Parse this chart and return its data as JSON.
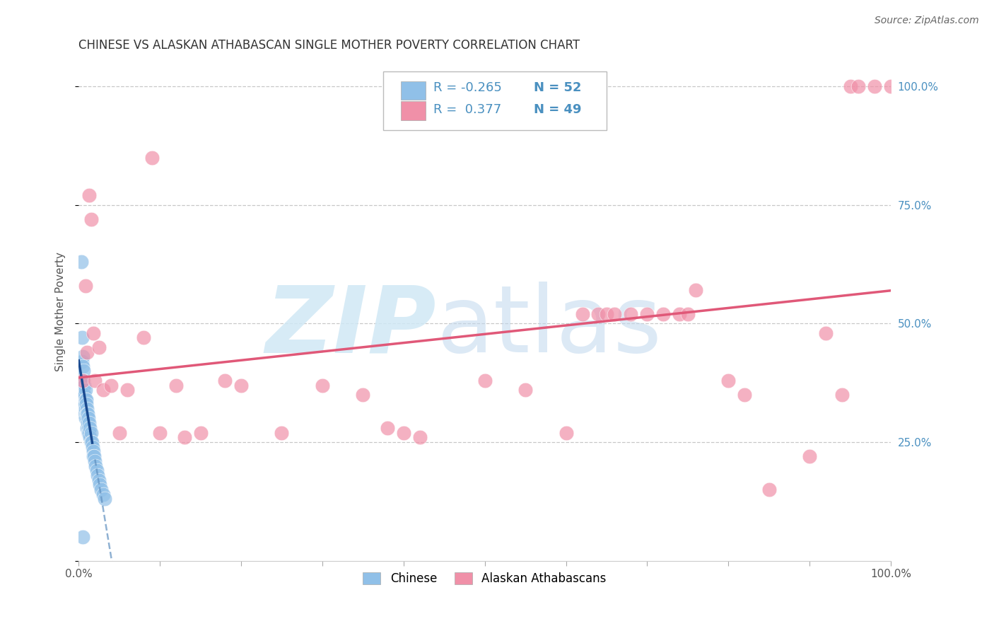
{
  "title": "CHINESE VS ALASKAN ATHABASCAN SINGLE MOTHER POVERTY CORRELATION CHART",
  "source": "Source: ZipAtlas.com",
  "ylabel": "Single Mother Poverty",
  "xlim": [
    0.0,
    1.0
  ],
  "ylim": [
    0.0,
    1.05
  ],
  "color_chinese": "#90C0E8",
  "color_athabascan": "#F090A8",
  "color_trend_chinese_solid": "#1A4A90",
  "color_trend_chinese_dashed": "#6090C0",
  "color_trend_athabascan": "#E05878",
  "right_tick_color": "#4A90C0",
  "background": "#FFFFFF",
  "grid_color": "#C8C8C8",
  "title_color": "#333333",
  "source_color": "#666666",
  "legend_text_color": "#4A90C0",
  "chinese_x": [
    0.003,
    0.004,
    0.004,
    0.005,
    0.005,
    0.005,
    0.005,
    0.006,
    0.006,
    0.006,
    0.006,
    0.007,
    0.007,
    0.007,
    0.007,
    0.008,
    0.008,
    0.008,
    0.008,
    0.009,
    0.009,
    0.009,
    0.01,
    0.01,
    0.01,
    0.01,
    0.011,
    0.011,
    0.012,
    0.012,
    0.012,
    0.013,
    0.013,
    0.014,
    0.014,
    0.015,
    0.015,
    0.016,
    0.017,
    0.018,
    0.018,
    0.019,
    0.02,
    0.021,
    0.022,
    0.023,
    0.025,
    0.026,
    0.028,
    0.03,
    0.032,
    0.005
  ],
  "chinese_y": [
    0.63,
    0.47,
    0.42,
    0.43,
    0.41,
    0.38,
    0.36,
    0.4,
    0.38,
    0.36,
    0.34,
    0.37,
    0.35,
    0.33,
    0.31,
    0.36,
    0.34,
    0.32,
    0.3,
    0.34,
    0.33,
    0.31,
    0.32,
    0.31,
    0.3,
    0.28,
    0.31,
    0.29,
    0.3,
    0.28,
    0.27,
    0.29,
    0.27,
    0.28,
    0.26,
    0.27,
    0.25,
    0.25,
    0.24,
    0.23,
    0.22,
    0.22,
    0.21,
    0.2,
    0.19,
    0.18,
    0.17,
    0.16,
    0.15,
    0.14,
    0.13,
    0.05
  ],
  "athabascan_x": [
    0.005,
    0.008,
    0.01,
    0.013,
    0.015,
    0.018,
    0.02,
    0.025,
    0.03,
    0.04,
    0.05,
    0.06,
    0.08,
    0.09,
    0.1,
    0.12,
    0.13,
    0.15,
    0.18,
    0.2,
    0.25,
    0.3,
    0.35,
    0.38,
    0.4,
    0.42,
    0.5,
    0.55,
    0.6,
    0.62,
    0.64,
    0.65,
    0.66,
    0.68,
    0.7,
    0.72,
    0.74,
    0.75,
    0.76,
    0.8,
    0.82,
    0.85,
    0.9,
    0.92,
    0.94,
    0.95,
    0.96,
    0.98,
    1.0
  ],
  "athabascan_y": [
    0.38,
    0.58,
    0.44,
    0.77,
    0.72,
    0.48,
    0.38,
    0.45,
    0.36,
    0.37,
    0.27,
    0.36,
    0.47,
    0.85,
    0.27,
    0.37,
    0.26,
    0.27,
    0.38,
    0.37,
    0.27,
    0.37,
    0.35,
    0.28,
    0.27,
    0.26,
    0.38,
    0.36,
    0.27,
    0.52,
    0.52,
    0.52,
    0.52,
    0.52,
    0.52,
    0.52,
    0.52,
    0.52,
    0.57,
    0.38,
    0.35,
    0.15,
    0.22,
    0.48,
    0.35,
    1.0,
    1.0,
    1.0,
    1.0
  ]
}
